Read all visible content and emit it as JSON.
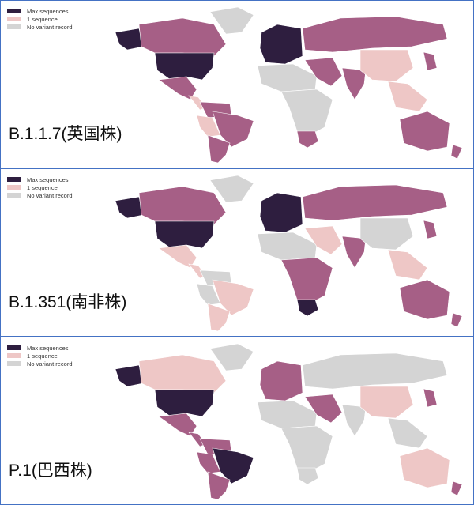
{
  "legend": [
    {
      "label": "Max sequences",
      "color": "#2e1e3f"
    },
    {
      "label": "1 sequence",
      "color": "#eec7c6"
    },
    {
      "label": "No variant record",
      "color": "#d4d4d4"
    }
  ],
  "intermediate_color": "#a65f86",
  "panels": [
    {
      "title": "B.1.1.7(英国株)",
      "regions": {
        "alaska": "max",
        "canada": "mid",
        "greenland": "none",
        "usa": "max",
        "mexico": "mid",
        "central_america": "one",
        "south_america_north": "mid",
        "brazil": "mid",
        "andes": "one",
        "southern_cone": "mid",
        "europe": "max",
        "russia": "mid",
        "north_africa": "none",
        "sub_saharan_africa": "none",
        "south_africa": "mid",
        "middle_east": "mid",
        "india": "mid",
        "china": "one",
        "southeast_asia": "one",
        "japan": "mid",
        "australia": "mid",
        "new_zealand": "mid"
      }
    },
    {
      "title": "B.1.351(南非株)",
      "regions": {
        "alaska": "max",
        "canada": "mid",
        "greenland": "none",
        "usa": "max",
        "mexico": "one",
        "central_america": "one",
        "south_america_north": "none",
        "brazil": "one",
        "andes": "none",
        "southern_cone": "one",
        "europe": "max",
        "russia": "mid",
        "north_africa": "none",
        "sub_saharan_africa": "mid",
        "south_africa": "max",
        "middle_east": "one",
        "india": "mid",
        "china": "none",
        "southeast_asia": "one",
        "japan": "mid",
        "australia": "mid",
        "new_zealand": "mid"
      }
    },
    {
      "title": "P.1(巴西株)",
      "regions": {
        "alaska": "max",
        "canada": "one",
        "greenland": "none",
        "usa": "max",
        "mexico": "mid",
        "central_america": "mid",
        "south_america_north": "mid",
        "brazil": "max",
        "andes": "mid",
        "southern_cone": "mid",
        "europe": "mid",
        "russia": "none",
        "north_africa": "none",
        "sub_saharan_africa": "none",
        "south_africa": "none",
        "middle_east": "mid",
        "india": "none",
        "china": "one",
        "southeast_asia": "none",
        "japan": "mid",
        "australia": "one",
        "new_zealand": "mid"
      }
    }
  ]
}
